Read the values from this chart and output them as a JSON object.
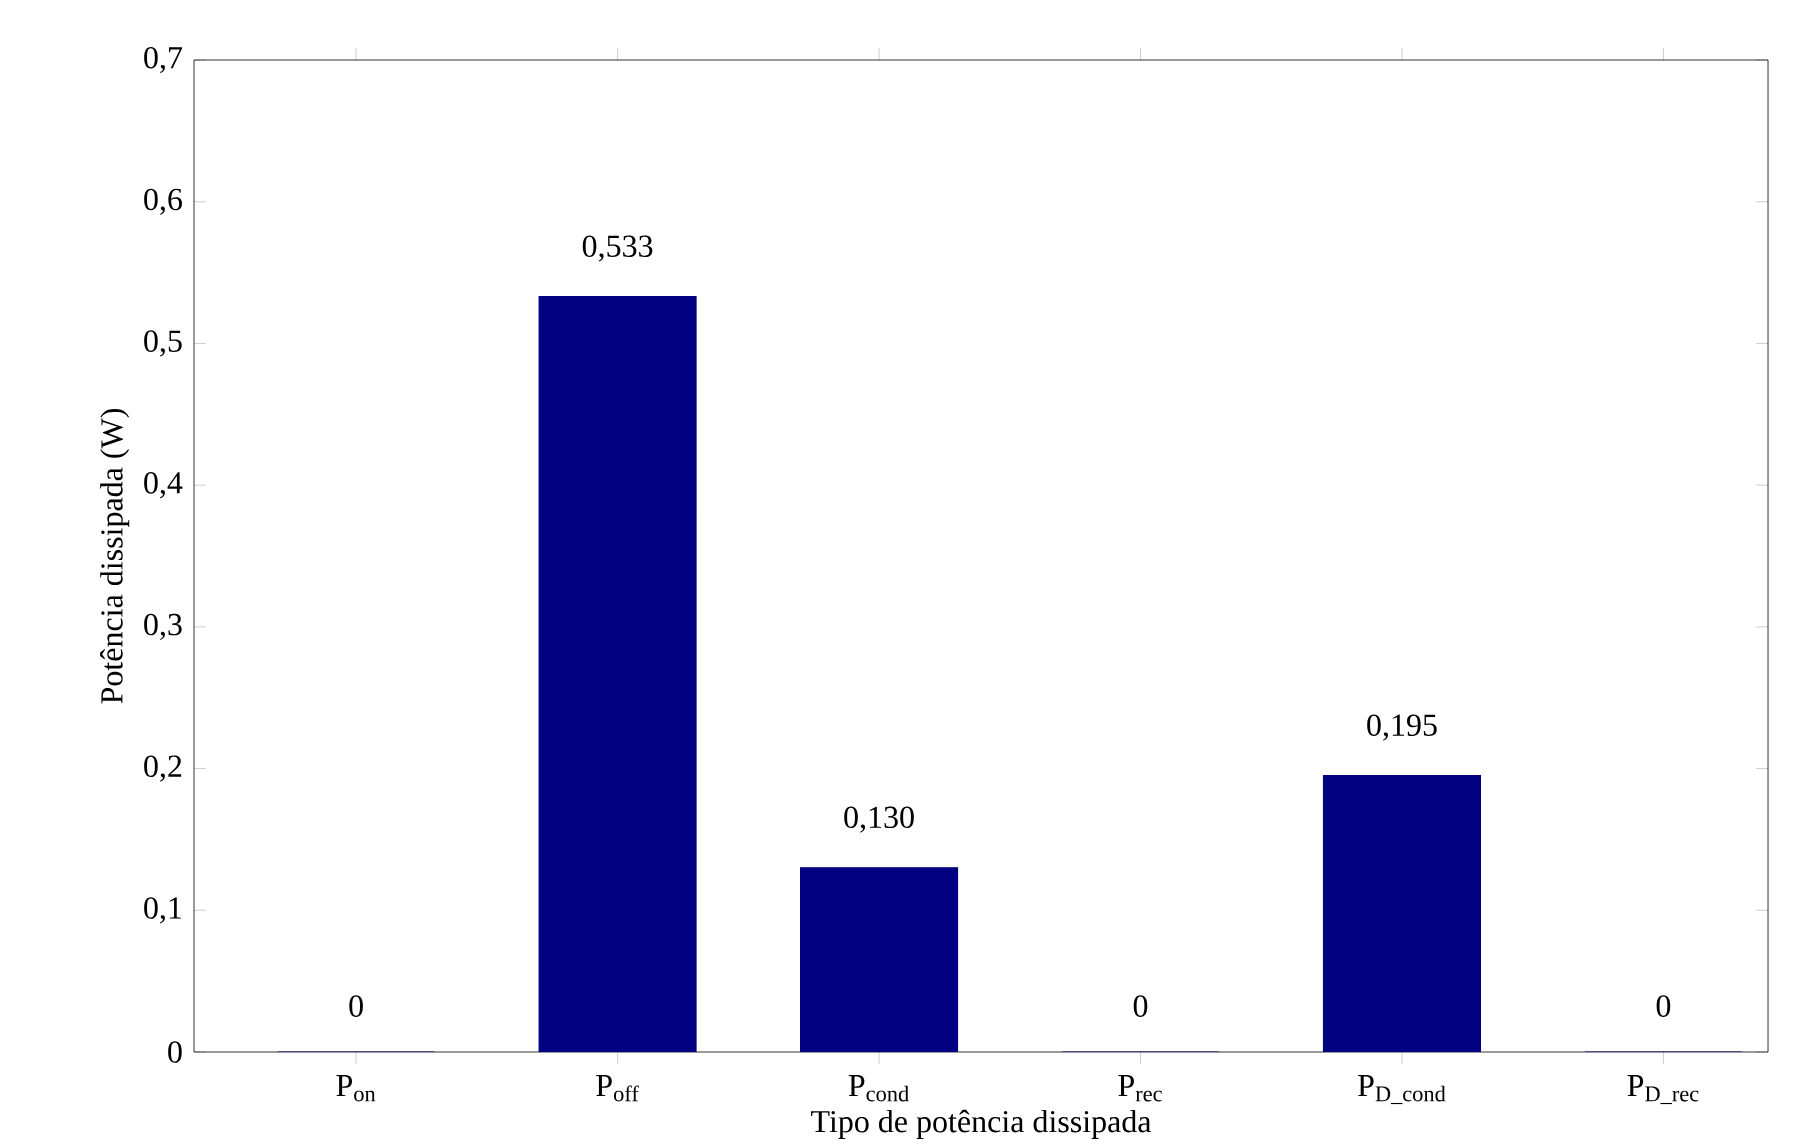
{
  "chart_data": {
    "type": "bar",
    "xlabel": "Tipo de potência dissipada",
    "ylabel": "Potência dissipada (W)",
    "categories": [
      "P$_{on}$",
      "P$_{off}$",
      "P$_{cond}$",
      "P$_{rec}$",
      "P$_{D_cond}$",
      "P$_{D_rec}$"
    ],
    "values": [
      0,
      0.533,
      0.13,
      0,
      0.195,
      0
    ],
    "value_labels": [
      "0",
      "0,533",
      "0,130",
      "0",
      "0,195",
      "0"
    ],
    "color": "#000080",
    "ylim": [
      0,
      0.7
    ],
    "yticks": [
      {
        "value": 0,
        "label": "0"
      },
      {
        "value": 0.1,
        "label": "0,1"
      },
      {
        "value": 0.2,
        "label": "0,2"
      },
      {
        "value": 0.3,
        "label": "0,3"
      },
      {
        "value": 0.4,
        "label": "0,4"
      },
      {
        "value": 0.5,
        "label": "0,5"
      },
      {
        "value": 0.6,
        "label": "0,6"
      },
      {
        "value": 0.7,
        "label": "0,7"
      }
    ],
    "grid": false
  }
}
